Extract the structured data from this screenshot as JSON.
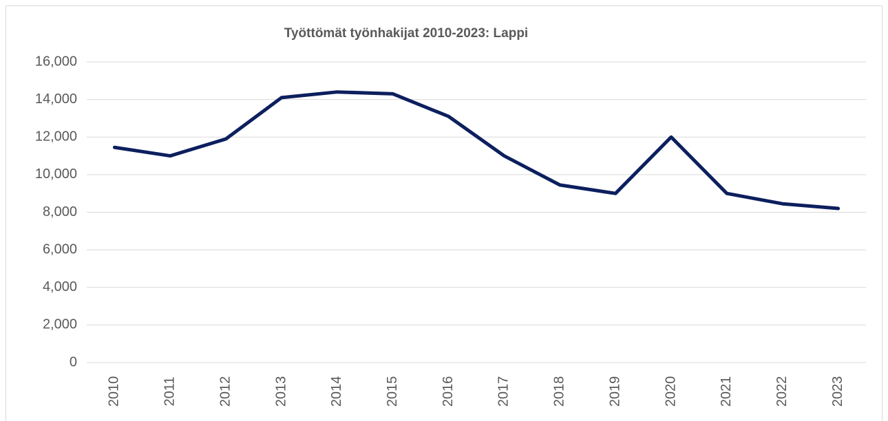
{
  "chart_data": {
    "type": "line",
    "title": "Työttömät työnhakijat 2010-2023: Lappi",
    "categories": [
      "2010",
      "2011",
      "2012",
      "2013",
      "2014",
      "2015",
      "2016",
      "2017",
      "2018",
      "2019",
      "2020",
      "2021",
      "2022",
      "2023"
    ],
    "series": [
      {
        "name": "Lappi",
        "color": "#0c1f5e",
        "values": [
          11450,
          11000,
          11900,
          14100,
          14400,
          14300,
          13100,
          11000,
          9450,
          9000,
          12000,
          9000,
          8450,
          8200
        ]
      }
    ],
    "ylim": [
      0,
      16000
    ],
    "yticks": [
      0,
      {
        "value": 2000,
        "label": "2,000"
      },
      {
        "value": 4000,
        "label": "4,000"
      },
      {
        "value": 6000,
        "label": "6,000"
      },
      {
        "value": 8000,
        "label": "8,000"
      },
      {
        "value": 10000,
        "label": "10,000"
      },
      {
        "value": 12000,
        "label": "12,000"
      },
      {
        "value": 14000,
        "label": "14,000"
      },
      {
        "value": 16000,
        "label": "16,000"
      }
    ],
    "grid": true
  }
}
